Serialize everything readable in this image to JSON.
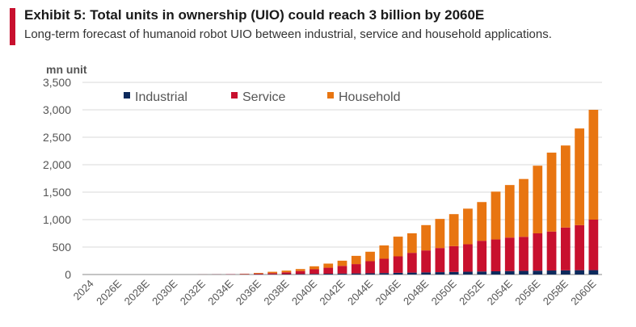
{
  "header": {
    "title": "Exhibit 5: Total units in ownership (UIO) could reach 3 billion by 2060E",
    "subtitle": "Long-term forecast of humanoid robot UIO between industrial, service and household applications.",
    "accent_color": "#c8102e"
  },
  "chart_data": {
    "type": "bar",
    "stacked": true,
    "unit_label": "mn unit",
    "ylim": [
      0,
      3500
    ],
    "yticks": [
      0,
      500,
      1000,
      1500,
      2000,
      2500,
      3000,
      3500
    ],
    "ytick_labels": [
      "0",
      "500",
      "1,000",
      "1,500",
      "2,000",
      "2,500",
      "3,000",
      "3,500"
    ],
    "grid": true,
    "legend_position": "top",
    "categories": [
      "2024",
      "2025",
      "2026E",
      "2027E",
      "2028E",
      "2029E",
      "2030E",
      "2031E",
      "2032E",
      "2033E",
      "2034E",
      "2035E",
      "2036E",
      "2037E",
      "2038E",
      "2039E",
      "2040E",
      "2041E",
      "2042E",
      "2043E",
      "2044E",
      "2045E",
      "2046E",
      "2047E",
      "2048E",
      "2049E",
      "2050E",
      "2051E",
      "2052E",
      "2053E",
      "2054E",
      "2055E",
      "2056E",
      "2057E",
      "2058E",
      "2059E",
      "2060E"
    ],
    "shown_tick_labels": [
      "2024",
      "2026E",
      "2028E",
      "2030E",
      "2032E",
      "2034E",
      "2036E",
      "2038E",
      "2040E",
      "2042E",
      "2044E",
      "2046E",
      "2048E",
      "2050E",
      "2052E",
      "2054E",
      "2056E",
      "2058E",
      "2060E"
    ],
    "series": [
      {
        "name": "Industrial",
        "color": "#0d2a5c",
        "values": [
          0,
          0,
          0,
          0,
          0,
          0,
          0,
          0,
          0,
          1,
          2,
          3,
          4,
          5,
          7,
          9,
          11,
          14,
          17,
          20,
          23,
          27,
          31,
          35,
          39,
          43,
          47,
          51,
          55,
          59,
          63,
          67,
          70,
          73,
          76,
          79,
          80
        ]
      },
      {
        "name": "Service",
        "color": "#c8102e",
        "values": [
          0,
          0,
          0,
          0,
          0,
          0,
          0,
          0,
          1,
          2,
          4,
          8,
          14,
          20,
          34,
          55,
          85,
          110,
          140,
          170,
          220,
          260,
          300,
          360,
          400,
          440,
          470,
          500,
          560,
          580,
          610,
          620,
          680,
          710,
          780,
          820,
          920
        ]
      },
      {
        "name": "Household",
        "color": "#e87511",
        "values": [
          0,
          0,
          0,
          0,
          0,
          0,
          0,
          0,
          0,
          0,
          0,
          4,
          12,
          25,
          30,
          36,
          54,
          75,
          95,
          150,
          172,
          243,
          359,
          356,
          461,
          530,
          583,
          649,
          705,
          871,
          957,
          1053,
          1232,
          1437,
          1494,
          1761,
          2000
        ]
      }
    ]
  }
}
